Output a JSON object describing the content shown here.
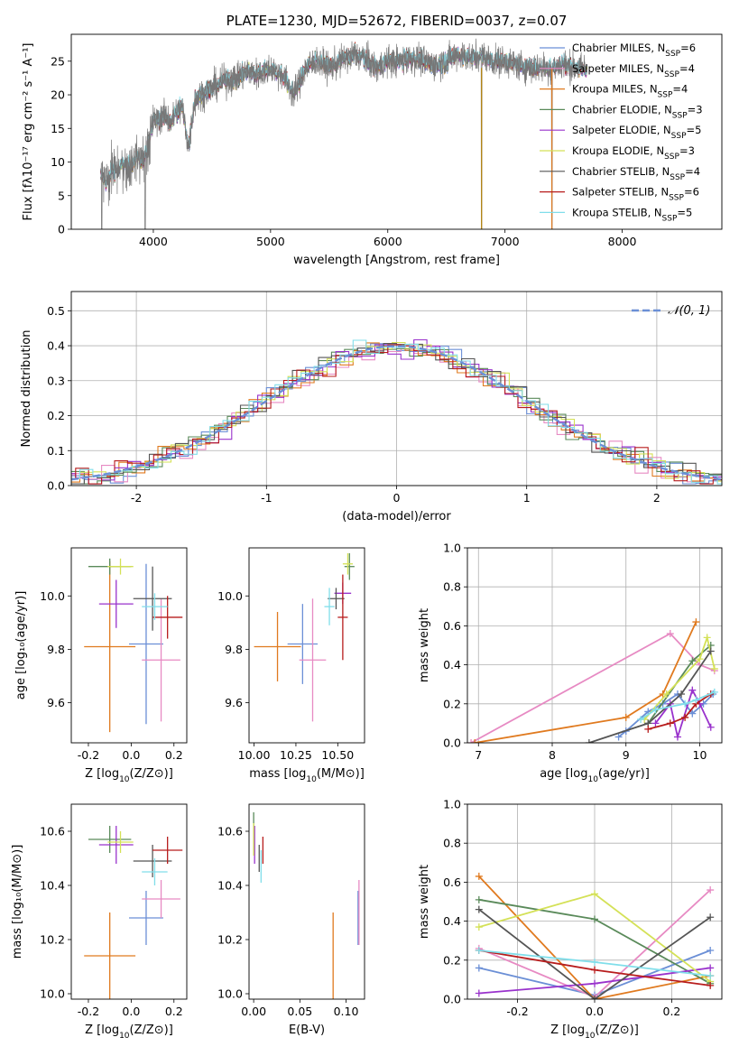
{
  "colors": [
    "#6b8fd6",
    "#e78ac3",
    "#e07a1f",
    "#5a8a5a",
    "#9932cc",
    "#d4e157",
    "#555555",
    "#b71c1c",
    "#80deea"
  ],
  "chart_data": [
    {
      "id": "spectrum",
      "type": "line",
      "title": "PLATE=1230, MJD=52672, FIBERID=0037, z=0.07",
      "xlabel": "wavelength [Angstrom, rest frame]",
      "ylabel": "Flux [fλ10⁻¹⁷ erg cm⁻² s⁻¹ A⁻¹]",
      "xlim": [
        3300,
        8850
      ],
      "ylim": [
        0,
        29
      ],
      "xticks": [
        4000,
        5000,
        6000,
        7000,
        8000
      ],
      "yticks": [
        0,
        5,
        10,
        15,
        20,
        25
      ],
      "grid": false,
      "legend_position": "top-right",
      "legend": [
        {
          "label": "Chabrier MILES, N_SSP=6",
          "label_main": "Chabrier MILES, N",
          "label_sub": "SSP",
          "label_tail": "=6"
        },
        {
          "label": "Salpeter MILES, N_SSP=4",
          "label_main": "Salpeter MILES, N",
          "label_sub": "SSP",
          "label_tail": "=4"
        },
        {
          "label": "Kroupa MILES, N_SSP=4",
          "label_main": "Kroupa MILES, N",
          "label_sub": "SSP",
          "label_tail": "=4"
        },
        {
          "label": "Chabrier ELODIE, N_SSP=3",
          "label_main": "Chabrier ELODIE, N",
          "label_sub": "SSP",
          "label_tail": "=3"
        },
        {
          "label": "Salpeter ELODIE, N_SSP=5",
          "label_main": "Salpeter ELODIE, N",
          "label_sub": "SSP",
          "label_tail": "=5"
        },
        {
          "label": "Kroupa ELODIE, N_SSP=3",
          "label_main": "Kroupa ELODIE, N",
          "label_sub": "SSP",
          "label_tail": "=3"
        },
        {
          "label": "Chabrier STELIB, N_SSP=4",
          "label_main": "Chabrier STELIB, N",
          "label_sub": "SSP",
          "label_tail": "=4"
        },
        {
          "label": "Salpeter STELIB, N_SSP=6",
          "label_main": "Salpeter STELIB, N",
          "label_sub": "SSP",
          "label_tail": "=6"
        },
        {
          "label": "Kroupa STELIB, N_SSP=5",
          "label_main": "Kroupa STELIB, N",
          "label_sub": "SSP",
          "label_tail": "=5"
        }
      ],
      "model_curve": {
        "x": [
          3550,
          3600,
          3650,
          3700,
          3750,
          3800,
          3850,
          3900,
          3950,
          4000,
          4050,
          4100,
          4150,
          4200,
          4250,
          4300,
          4350,
          4400,
          4500,
          4600,
          4700,
          4800,
          4900,
          5000,
          5100,
          5200,
          5300,
          5400,
          5500,
          5600,
          5700,
          5800,
          5900,
          6000,
          6100,
          6200,
          6300,
          6400,
          6500,
          6600,
          6700,
          6800,
          6900,
          7000,
          7100,
          7200,
          7300,
          7400,
          7500,
          7600
        ],
        "y": [
          8,
          7,
          9,
          8.5,
          10,
          9,
          11,
          10,
          12,
          16,
          16.5,
          17,
          16,
          17.5,
          18,
          12,
          19,
          20,
          21,
          22,
          22.5,
          23.5,
          23,
          24,
          23,
          20,
          24,
          25,
          24,
          25,
          26,
          25.5,
          24,
          25,
          25,
          25.5,
          25,
          24.5,
          25,
          26,
          25.5,
          26,
          25,
          25,
          24.5,
          24,
          24,
          24,
          24.5,
          24
        ]
      },
      "observed_span": [
        3550,
        7700
      ],
      "deep_lines": [
        3560,
        3930,
        6800,
        7400
      ]
    },
    {
      "id": "residuals",
      "type": "histogram",
      "xlabel": "(data-model)/error",
      "ylabel": "Normed distribution",
      "xlim": [
        -2.5,
        2.5
      ],
      "ylim": [
        0,
        0.555
      ],
      "xticks": [
        -2,
        -1,
        0,
        1,
        2
      ],
      "yticks": [
        0.0,
        0.1,
        0.2,
        0.3,
        0.4,
        0.5
      ],
      "grid": true,
      "bin_width": 0.1,
      "legend": [
        {
          "label": "𝒩(0, 1)",
          "style": "dashed"
        }
      ],
      "legend_position": "top-right"
    },
    {
      "id": "Z-age",
      "type": "errorbar",
      "xlabel_main": "Z [log",
      "xlabel_sub": "10",
      "xlabel_tail": "(Z/Z⊙)]",
      "ylabel": "age  [log₁₀(age/yr)]",
      "xlim": [
        -0.28,
        0.26
      ],
      "ylim": [
        9.45,
        10.18
      ],
      "xticks": [
        -0.2,
        0.0,
        0.2
      ],
      "yticks": [
        9.6,
        9.8,
        10.0
      ],
      "points": [
        {
          "x": 0.07,
          "xerr": 0.08,
          "y": 9.82,
          "yerr": 0.3,
          "c": 0
        },
        {
          "x": 0.14,
          "xerr": 0.09,
          "y": 9.76,
          "yerr": 0.23,
          "c": 1
        },
        {
          "x": -0.1,
          "xerr": 0.12,
          "y": 9.81,
          "yerr": 0.32,
          "c": 2
        },
        {
          "x": -0.1,
          "xerr": 0.1,
          "y": 10.11,
          "yerr": 0.03,
          "c": 3
        },
        {
          "x": -0.07,
          "xerr": 0.08,
          "y": 9.97,
          "yerr": 0.09,
          "c": 4
        },
        {
          "x": -0.05,
          "xerr": 0.06,
          "y": 10.11,
          "yerr": 0.03,
          "c": 5
        },
        {
          "x": 0.1,
          "xerr": 0.09,
          "y": 9.99,
          "yerr": 0.12,
          "c": 6
        },
        {
          "x": 0.17,
          "xerr": 0.07,
          "y": 9.92,
          "yerr": 0.08,
          "c": 7
        },
        {
          "x": 0.11,
          "xerr": 0.06,
          "y": 9.96,
          "yerr": 0.05,
          "c": 8
        }
      ]
    },
    {
      "id": "mass-age",
      "type": "errorbar",
      "xlabel_main": "mass [log",
      "xlabel_sub": "10",
      "xlabel_tail": "(M/M⊙)]",
      "xlim": [
        9.97,
        10.66
      ],
      "ylim": [
        9.45,
        10.18
      ],
      "xticks": [
        10.0,
        10.25,
        10.5
      ],
      "xticklabels": [
        "10.00",
        "10.25",
        "10.50"
      ],
      "yticks": [
        9.6,
        9.8,
        10.0
      ],
      "points": [
        {
          "x": 10.29,
          "xerr": 0.09,
          "y": 9.82,
          "yerr": 0.15,
          "c": 0
        },
        {
          "x": 10.35,
          "xerr": 0.08,
          "y": 9.76,
          "yerr": 0.23,
          "c": 1
        },
        {
          "x": 10.14,
          "xerr": 0.14,
          "y": 9.81,
          "yerr": 0.13,
          "c": 2
        },
        {
          "x": 10.57,
          "xerr": 0.03,
          "y": 10.11,
          "yerr": 0.05,
          "c": 3
        },
        {
          "x": 10.53,
          "xerr": 0.05,
          "y": 10.01,
          "yerr": 0.04,
          "c": 4
        },
        {
          "x": 10.56,
          "xerr": 0.03,
          "y": 10.12,
          "yerr": 0.04,
          "c": 5
        },
        {
          "x": 10.49,
          "xerr": 0.05,
          "y": 9.99,
          "yerr": 0.04,
          "c": 6
        },
        {
          "x": 10.53,
          "xerr": 0.03,
          "y": 9.92,
          "yerr": 0.16,
          "c": 7
        },
        {
          "x": 10.45,
          "xerr": 0.03,
          "y": 9.96,
          "yerr": 0.07,
          "c": 8
        }
      ]
    },
    {
      "id": "age-weight",
      "type": "line",
      "xlabel_main": "age  [log",
      "xlabel_sub": "10",
      "xlabel_tail": "(age/yr)]",
      "ylabel": "mass weight",
      "xlim": [
        6.85,
        10.3
      ],
      "ylim": [
        0,
        1
      ],
      "xticks": [
        7,
        8,
        9,
        10
      ],
      "yticks": [
        0.0,
        0.2,
        0.4,
        0.6,
        0.8,
        1.0
      ],
      "grid": true,
      "series": [
        {
          "c": 0,
          "x": [
            8.9,
            9.0,
            9.3,
            9.5,
            9.7,
            9.9,
            10.05,
            10.18
          ],
          "y": [
            0.03,
            0.06,
            0.16,
            0.2,
            0.25,
            0.15,
            0.2,
            0.25
          ]
        },
        {
          "c": 1,
          "x": [
            6.9,
            9.6,
            10.0,
            10.2
          ],
          "y": [
            0.0,
            0.56,
            0.4,
            0.37
          ]
        },
        {
          "c": 2,
          "x": [
            6.95,
            9.0,
            9.5,
            9.95
          ],
          "y": [
            0.0,
            0.13,
            0.25,
            0.62
          ]
        },
        {
          "c": 3,
          "x": [
            9.3,
            9.9,
            10.15
          ],
          "y": [
            0.1,
            0.42,
            0.5
          ]
        },
        {
          "c": 4,
          "x": [
            9.4,
            9.6,
            9.7,
            9.9,
            10.0,
            10.15
          ],
          "y": [
            0.1,
            0.2,
            0.03,
            0.27,
            0.2,
            0.08
          ]
        },
        {
          "c": 5,
          "x": [
            9.25,
            9.55,
            10.0,
            10.1,
            10.2
          ],
          "y": [
            0.12,
            0.25,
            0.43,
            0.54,
            0.38
          ]
        },
        {
          "c": 6,
          "x": [
            8.5,
            9.3,
            9.75,
            10.15
          ],
          "y": [
            0.0,
            0.1,
            0.25,
            0.47
          ]
        },
        {
          "c": 7,
          "x": [
            9.3,
            9.6,
            9.8,
            9.95,
            10.15
          ],
          "y": [
            0.07,
            0.1,
            0.13,
            0.2,
            0.25
          ]
        },
        {
          "c": 8,
          "x": [
            9.2,
            9.4,
            9.8,
            9.95,
            10.2
          ],
          "y": [
            0.12,
            0.17,
            0.2,
            0.22,
            0.26
          ]
        }
      ]
    },
    {
      "id": "Z-mass",
      "type": "errorbar",
      "xlabel_main": "Z [log",
      "xlabel_sub": "10",
      "xlabel_tail": "(Z/Z⊙)]",
      "ylabel": "mass [log₁₀(M/M⊙)]",
      "xlim": [
        -0.28,
        0.26
      ],
      "ylim": [
        9.98,
        10.7
      ],
      "xticks": [
        -0.2,
        0.0,
        0.2
      ],
      "yticks": [
        10.0,
        10.2,
        10.4,
        10.6
      ],
      "points": [
        {
          "x": 0.07,
          "xerr": 0.08,
          "y": 10.28,
          "yerr": 0.1,
          "c": 0
        },
        {
          "x": 0.14,
          "xerr": 0.09,
          "y": 10.35,
          "yerr": 0.07,
          "c": 1
        },
        {
          "x": -0.1,
          "xerr": 0.12,
          "y": 10.14,
          "yerr": 0.16,
          "c": 2
        },
        {
          "x": -0.1,
          "xerr": 0.1,
          "y": 10.57,
          "yerr": 0.05,
          "c": 3
        },
        {
          "x": -0.07,
          "xerr": 0.08,
          "y": 10.55,
          "yerr": 0.07,
          "c": 4
        },
        {
          "x": -0.05,
          "xerr": 0.06,
          "y": 10.56,
          "yerr": 0.04,
          "c": 5
        },
        {
          "x": 0.1,
          "xerr": 0.09,
          "y": 10.49,
          "yerr": 0.06,
          "c": 6
        },
        {
          "x": 0.17,
          "xerr": 0.07,
          "y": 10.53,
          "yerr": 0.05,
          "c": 7
        },
        {
          "x": 0.11,
          "xerr": 0.06,
          "y": 10.45,
          "yerr": 0.05,
          "c": 8
        }
      ]
    },
    {
      "id": "ebv-mass",
      "type": "errorbar",
      "xlabel": "E(B-V)",
      "xlim": [
        -0.005,
        0.12
      ],
      "ylim": [
        9.98,
        10.7
      ],
      "xticks": [
        0.0,
        0.05,
        0.1
      ],
      "xticklabels": [
        "0.00",
        "0.05",
        "0.10"
      ],
      "yticks": [
        10.0,
        10.2,
        10.4,
        10.6
      ],
      "points": [
        {
          "x": 0.113,
          "y": 10.28,
          "yerr": 0.1,
          "c": 0
        },
        {
          "x": 0.114,
          "y": 10.3,
          "yerr": 0.12,
          "c": 1
        },
        {
          "x": 0.086,
          "y": 10.14,
          "yerr": 0.16,
          "c": 2
        },
        {
          "x": 0.0,
          "y": 10.6,
          "yerr": 0.07,
          "c": 3
        },
        {
          "x": 0.001,
          "y": 10.55,
          "yerr": 0.07,
          "c": 4
        },
        {
          "x": 0.0,
          "y": 10.57,
          "yerr": 0.06,
          "c": 5
        },
        {
          "x": 0.006,
          "y": 10.5,
          "yerr": 0.05,
          "c": 6
        },
        {
          "x": 0.01,
          "y": 10.53,
          "yerr": 0.05,
          "c": 7
        },
        {
          "x": 0.008,
          "y": 10.47,
          "yerr": 0.06,
          "c": 8
        }
      ]
    },
    {
      "id": "Z-weight",
      "type": "line",
      "xlabel_main": "Z [log",
      "xlabel_sub": "10",
      "xlabel_tail": "(Z/Z⊙)]",
      "ylabel": "mass weight",
      "xlim": [
        -0.33,
        0.33
      ],
      "ylim": [
        0,
        1
      ],
      "xticks": [
        -0.2,
        0.0,
        0.2
      ],
      "yticks": [
        0.0,
        0.2,
        0.4,
        0.6,
        0.8,
        1.0
      ],
      "grid": true,
      "series": [
        {
          "c": 0,
          "x": [
            -0.3,
            0.0,
            0.3
          ],
          "y": [
            0.16,
            0.02,
            0.25
          ]
        },
        {
          "c": 1,
          "x": [
            -0.3,
            0.0,
            0.3
          ],
          "y": [
            0.26,
            0.01,
            0.56
          ]
        },
        {
          "c": 2,
          "x": [
            -0.3,
            0.0,
            0.3
          ],
          "y": [
            0.63,
            0.0,
            0.12
          ]
        },
        {
          "c": 3,
          "x": [
            -0.3,
            0.0,
            0.3
          ],
          "y": [
            0.51,
            0.41,
            0.08
          ]
        },
        {
          "c": 4,
          "x": [
            -0.3,
            0.0,
            0.3
          ],
          "y": [
            0.03,
            0.08,
            0.16
          ]
        },
        {
          "c": 5,
          "x": [
            -0.3,
            0.0,
            0.3
          ],
          "y": [
            0.37,
            0.54,
            0.09
          ]
        },
        {
          "c": 6,
          "x": [
            -0.3,
            0.0,
            0.3
          ],
          "y": [
            0.46,
            0.0,
            0.42
          ]
        },
        {
          "c": 7,
          "x": [
            -0.3,
            0.0,
            0.3
          ],
          "y": [
            0.25,
            0.15,
            0.07
          ]
        },
        {
          "c": 8,
          "x": [
            -0.3,
            0.0,
            0.3
          ],
          "y": [
            0.25,
            0.19,
            0.12
          ]
        }
      ]
    }
  ]
}
